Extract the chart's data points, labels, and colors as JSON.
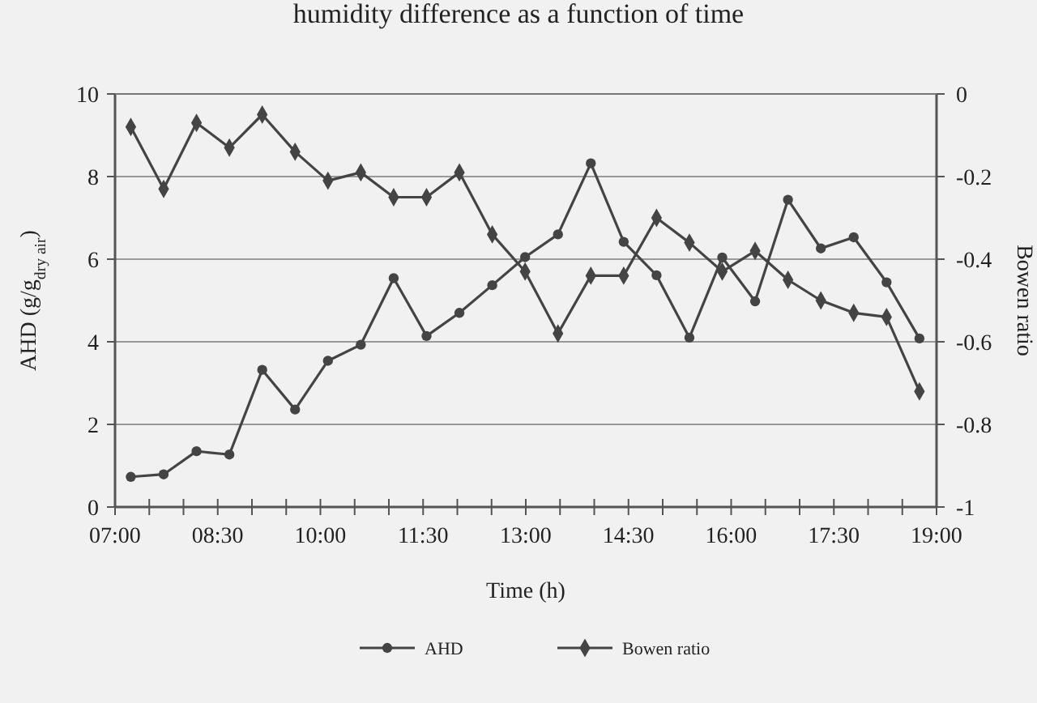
{
  "chart_data": {
    "type": "line",
    "title": "humidity difference as a function of time",
    "xlabel": "Time (h)",
    "ylabel": "AHD (g/g$_{dry air}$)",
    "y2label": "Bowen ratio",
    "x": [
      7.23,
      7.71,
      8.19,
      8.67,
      9.15,
      9.63,
      10.11,
      10.59,
      11.07,
      11.55,
      12.03,
      12.51,
      12.99,
      13.47,
      13.95,
      14.43,
      14.91,
      15.39,
      15.87,
      16.35,
      16.83,
      17.31,
      17.79,
      18.27,
      18.75
    ],
    "series": [
      {
        "name": "AHD",
        "color": "#444444",
        "marker": "circle",
        "values": [
          0.73,
          0.79,
          1.35,
          1.27,
          3.32,
          2.36,
          3.54,
          3.93,
          5.54,
          4.14,
          4.7,
          5.37,
          6.05,
          6.6,
          8.32,
          6.42,
          5.61,
          4.1,
          6.04,
          4.98,
          7.44,
          6.26,
          6.53,
          5.44,
          4.08
        ]
      },
      {
        "name": "Bowen ratio",
        "color": "#444444",
        "marker": "diamond",
        "axis": "y2",
        "values": [
          -0.08,
          -0.23,
          -0.07,
          -0.13,
          -0.05,
          -0.14,
          -0.21,
          -0.19,
          -0.25,
          -0.25,
          -0.19,
          -0.34,
          -0.43,
          -0.58,
          -0.44,
          -0.44,
          -0.3,
          -0.36,
          -0.43,
          -0.38,
          -0.45,
          -0.5,
          -0.53,
          -0.54,
          -0.72
        ]
      }
    ],
    "xlim": [
      7,
      19
    ],
    "xticks": [
      {
        "value": 7,
        "label": "07:00"
      },
      {
        "value": 7.5,
        "label": null
      },
      {
        "value": 8,
        "label": null
      },
      {
        "value": 8.5,
        "label": "08:30"
      },
      {
        "value": 9,
        "label": null
      },
      {
        "value": 9.5,
        "label": null
      },
      {
        "value": 10,
        "label": "10:00"
      },
      {
        "value": 10.5,
        "label": null
      },
      {
        "value": 11,
        "label": null
      },
      {
        "value": 11.5,
        "label": "11:30"
      },
      {
        "value": 12,
        "label": null
      },
      {
        "value": 12.5,
        "label": null
      },
      {
        "value": 13,
        "label": "13:00"
      },
      {
        "value": 13.5,
        "label": null
      },
      {
        "value": 14,
        "label": null
      },
      {
        "value": 14.5,
        "label": "14:30"
      },
      {
        "value": 15,
        "label": null
      },
      {
        "value": 15.5,
        "label": null
      },
      {
        "value": 16,
        "label": "16:00"
      },
      {
        "value": 16.5,
        "label": null
      },
      {
        "value": 17,
        "label": null
      },
      {
        "value": 17.5,
        "label": "17:30"
      },
      {
        "value": 18,
        "label": null
      },
      {
        "value": 18.5,
        "label": null
      },
      {
        "value": 19,
        "label": "19:00"
      }
    ],
    "ylim": [
      0,
      10
    ],
    "yticks": [
      0,
      2,
      4,
      6,
      8,
      10
    ],
    "y2lim": [
      -1,
      0
    ],
    "y2ticks": [
      -1,
      -0.8,
      -0.6,
      -0.4,
      -0.2,
      0
    ],
    "grid": "y",
    "legend": "bottom",
    "line_style": "solid"
  }
}
